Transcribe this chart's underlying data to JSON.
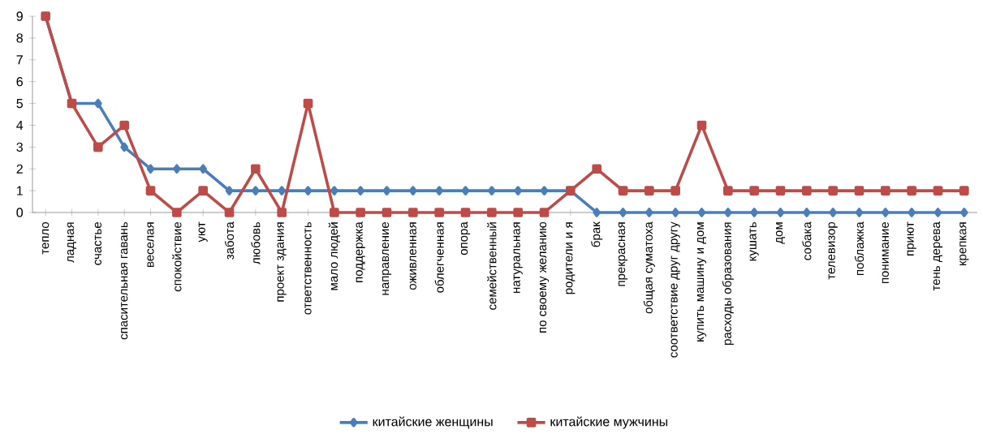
{
  "chart_data": {
    "type": "line",
    "categories": [
      "тепло",
      "ладная",
      "счастье",
      "спасительная гавань",
      "веселая",
      "спокойствие",
      "уют",
      "забота",
      "любовь",
      "проект здания",
      "ответственность",
      "мало людей",
      "поддержка",
      "направление",
      "оживленная",
      "облегченная",
      "опора",
      "семейственный",
      "натуральная",
      "по своему желанию",
      "родители и я",
      "брак",
      "прекрасная",
      "общая суматоха",
      "соответствие друг другу",
      "купить машину и дом",
      "расходы образования",
      "кушать",
      "дом",
      "собака",
      "телевизор",
      "поблажка",
      "понимание",
      "приют",
      "тень дерева",
      "крепкая"
    ],
    "series": [
      {
        "name": "китайские женщины",
        "color": "#4a7ebb",
        "marker": "diamond",
        "values": [
          9,
          5,
          5,
          3,
          2,
          2,
          2,
          1,
          1,
          1,
          1,
          1,
          1,
          1,
          1,
          1,
          1,
          1,
          1,
          1,
          1,
          0,
          0,
          0,
          0,
          0,
          0,
          0,
          0,
          0,
          0,
          0,
          0,
          0,
          0,
          0
        ]
      },
      {
        "name": "китайские мужчины",
        "color": "#be4b48",
        "marker": "square",
        "values": [
          9,
          5,
          3,
          4,
          1,
          0,
          1,
          0,
          2,
          0,
          5,
          0,
          0,
          0,
          0,
          0,
          0,
          0,
          0,
          0,
          1,
          2,
          1,
          1,
          1,
          4,
          1,
          1,
          1,
          1,
          1,
          1,
          1,
          1,
          1,
          1
        ]
      }
    ],
    "ylim": [
      0,
      9
    ],
    "yticks": [
      0,
      1,
      2,
      3,
      4,
      5,
      6,
      7,
      8,
      9
    ],
    "grid": false,
    "legend": "bottom",
    "line_style": "solid"
  }
}
